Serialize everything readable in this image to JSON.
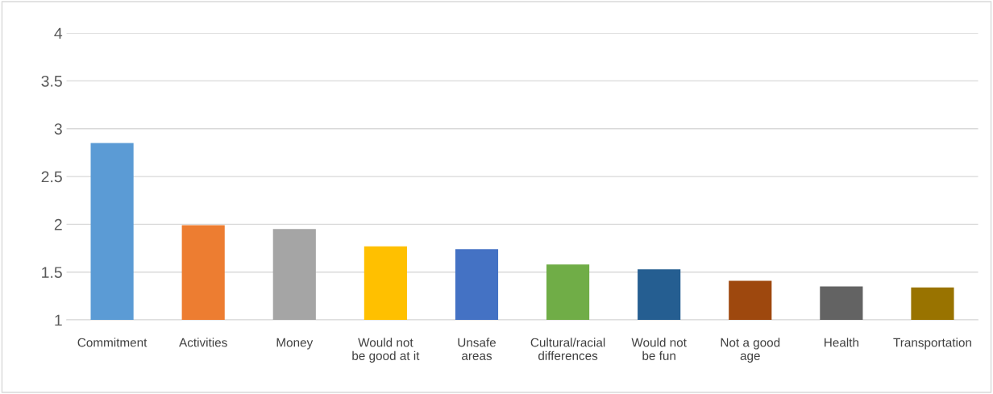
{
  "chart_data": {
    "type": "bar",
    "categories": [
      "Commitment",
      "Activities",
      "Money",
      "Would not\nbe good at it",
      "Unsafe\nareas",
      "Cultural/racial\ndifferences",
      "Would not\nbe fun",
      "Not a good\nage",
      "Health",
      "Transportation"
    ],
    "values": [
      2.85,
      1.99,
      1.95,
      1.77,
      1.74,
      1.58,
      1.53,
      1.41,
      1.35,
      1.34
    ],
    "colors": [
      "#5b9bd5",
      "#ed7d31",
      "#a5a5a5",
      "#ffc000",
      "#4472c4",
      "#70ad47",
      "#255e91",
      "#9e480e",
      "#636363",
      "#997300"
    ],
    "ylim": [
      1,
      4
    ],
    "yticks": [
      1,
      1.5,
      2,
      2.5,
      3,
      3.5,
      4
    ],
    "grid": "y",
    "legend": false
  }
}
